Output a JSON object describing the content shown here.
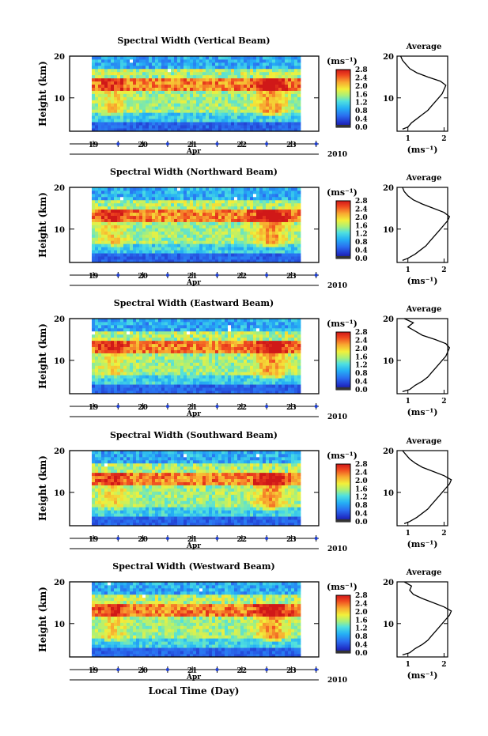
{
  "figure": {
    "xlabel": "Local Time (Day)",
    "ylabel": "Height (km)",
    "month_label": "Apr",
    "year_label": "2010",
    "units_label": "(ms⁻¹)",
    "average_title": "Average",
    "average_xlabel": "(ms⁻¹)"
  },
  "chart_data": [
    {
      "type": "heatmap",
      "title": "Spectral Width (Vertical Beam)",
      "xlabel": "Local Time (Day)",
      "ylabel": "Height (km)",
      "x_ticks": [
        "19",
        "20",
        "21",
        "22",
        "23"
      ],
      "y_ticks": [
        10,
        20
      ],
      "ylim": [
        2,
        20
      ],
      "colorbar_label": "(ms⁻¹)",
      "colorbar_ticks": [
        "0.0",
        "0.4",
        "0.8",
        "1.2",
        "1.6",
        "2.0",
        "2.4",
        "2.8"
      ],
      "colorbar_range": [
        0,
        2.8
      ],
      "average_profile": {
        "title": "Average",
        "xlabel": "(ms⁻¹)",
        "x_ticks": [
          "1",
          "2"
        ],
        "y_ticks": [
          10,
          20
        ],
        "height_km": [
          2.5,
          3,
          4,
          5,
          6,
          7,
          8,
          9,
          10,
          11,
          12,
          13,
          14,
          15,
          16,
          17,
          18,
          19,
          20
        ],
        "width_ms": [
          0.85,
          1.0,
          1.1,
          1.25,
          1.4,
          1.55,
          1.65,
          1.75,
          1.85,
          1.95,
          2.0,
          2.05,
          1.9,
          1.55,
          1.25,
          1.05,
          0.95,
          0.85,
          0.8
        ]
      }
    },
    {
      "type": "heatmap",
      "title": "Spectral Width (Northward Beam)",
      "xlabel": "Local Time (Day)",
      "ylabel": "Height (km)",
      "x_ticks": [
        "19",
        "20",
        "21",
        "22",
        "23"
      ],
      "y_ticks": [
        10,
        20
      ],
      "ylim": [
        2,
        20
      ],
      "colorbar_label": "(ms⁻¹)",
      "colorbar_ticks": [
        "0.0",
        "0.4",
        "0.8",
        "1.2",
        "1.6",
        "2.0",
        "2.4",
        "2.8"
      ],
      "colorbar_range": [
        0,
        2.8
      ],
      "average_profile": {
        "title": "Average",
        "xlabel": "(ms⁻¹)",
        "x_ticks": [
          "1",
          "2"
        ],
        "y_ticks": [
          10,
          20
        ],
        "height_km": [
          2.5,
          3,
          4,
          5,
          6,
          7,
          8,
          9,
          10,
          11,
          12,
          13,
          14,
          15,
          16,
          17,
          18,
          19,
          20
        ],
        "width_ms": [
          0.85,
          1.0,
          1.2,
          1.35,
          1.5,
          1.6,
          1.7,
          1.8,
          1.9,
          2.0,
          2.1,
          2.15,
          2.0,
          1.7,
          1.4,
          1.15,
          1.0,
          0.9,
          0.85
        ]
      }
    },
    {
      "type": "heatmap",
      "title": "Spectral Width (Eastward Beam)",
      "xlabel": "Local Time (Day)",
      "ylabel": "Height (km)",
      "x_ticks": [
        "19",
        "20",
        "21",
        "22",
        "23"
      ],
      "y_ticks": [
        10,
        20
      ],
      "ylim": [
        2,
        20
      ],
      "colorbar_label": "(ms⁻¹)",
      "colorbar_ticks": [
        "0.0",
        "0.4",
        "0.8",
        "1.2",
        "1.6",
        "2.0",
        "2.4",
        "2.8"
      ],
      "colorbar_range": [
        0,
        2.8
      ],
      "average_profile": {
        "title": "Average",
        "xlabel": "(ms⁻¹)",
        "x_ticks": [
          "1",
          "2"
        ],
        "y_ticks": [
          10,
          20
        ],
        "height_km": [
          2.5,
          3,
          4,
          5,
          6,
          7,
          8,
          9,
          10,
          11,
          12,
          13,
          14,
          15,
          16,
          17,
          18,
          19,
          20
        ],
        "width_ms": [
          0.85,
          1.05,
          1.2,
          1.4,
          1.55,
          1.65,
          1.75,
          1.85,
          1.95,
          2.05,
          2.1,
          2.15,
          2.05,
          1.75,
          1.4,
          1.2,
          1.0,
          1.15,
          0.9
        ]
      }
    },
    {
      "type": "heatmap",
      "title": "Spectral Width (Southward Beam)",
      "xlabel": "Local Time (Day)",
      "ylabel": "Height (km)",
      "x_ticks": [
        "19",
        "20",
        "21",
        "22",
        "23"
      ],
      "y_ticks": [
        10,
        20
      ],
      "ylim": [
        2,
        20
      ],
      "colorbar_label": "(ms⁻¹)",
      "colorbar_ticks": [
        "0.0",
        "0.4",
        "0.8",
        "1.2",
        "1.6",
        "2.0",
        "2.4",
        "2.8"
      ],
      "colorbar_range": [
        0,
        2.8
      ],
      "average_profile": {
        "title": "Average",
        "xlabel": "(ms⁻¹)",
        "x_ticks": [
          "1",
          "2"
        ],
        "y_ticks": [
          10,
          20
        ],
        "height_km": [
          2.5,
          3,
          4,
          5,
          6,
          7,
          8,
          9,
          10,
          11,
          12,
          13,
          14,
          15,
          16,
          17,
          18,
          19,
          20
        ],
        "width_ms": [
          0.9,
          1.05,
          1.25,
          1.4,
          1.55,
          1.65,
          1.75,
          1.85,
          1.95,
          2.05,
          2.15,
          2.2,
          2.0,
          1.7,
          1.4,
          1.2,
          1.05,
          0.95,
          0.85
        ]
      }
    },
    {
      "type": "heatmap",
      "title": "Spectral Width (Westward Beam)",
      "xlabel": "Local Time (Day)",
      "ylabel": "Height (km)",
      "x_ticks": [
        "19",
        "20",
        "21",
        "22",
        "23"
      ],
      "y_ticks": [
        10,
        20
      ],
      "ylim": [
        2,
        20
      ],
      "colorbar_label": "(ms⁻¹)",
      "colorbar_ticks": [
        "0.0",
        "0.4",
        "0.8",
        "1.2",
        "1.6",
        "2.0",
        "2.4",
        "2.8"
      ],
      "colorbar_range": [
        0,
        2.8
      ],
      "average_profile": {
        "title": "Average",
        "xlabel": "(ms⁻¹)",
        "x_ticks": [
          "1",
          "2"
        ],
        "y_ticks": [
          10,
          20
        ],
        "height_km": [
          2.5,
          3,
          4,
          5,
          6,
          7,
          8,
          9,
          10,
          11,
          12,
          13,
          14,
          15,
          16,
          17,
          18,
          19,
          20
        ],
        "width_ms": [
          0.85,
          1.05,
          1.2,
          1.4,
          1.55,
          1.65,
          1.75,
          1.85,
          1.95,
          2.05,
          2.15,
          2.2,
          2.0,
          1.7,
          1.4,
          1.15,
          1.05,
          1.1,
          0.9
        ]
      }
    }
  ]
}
